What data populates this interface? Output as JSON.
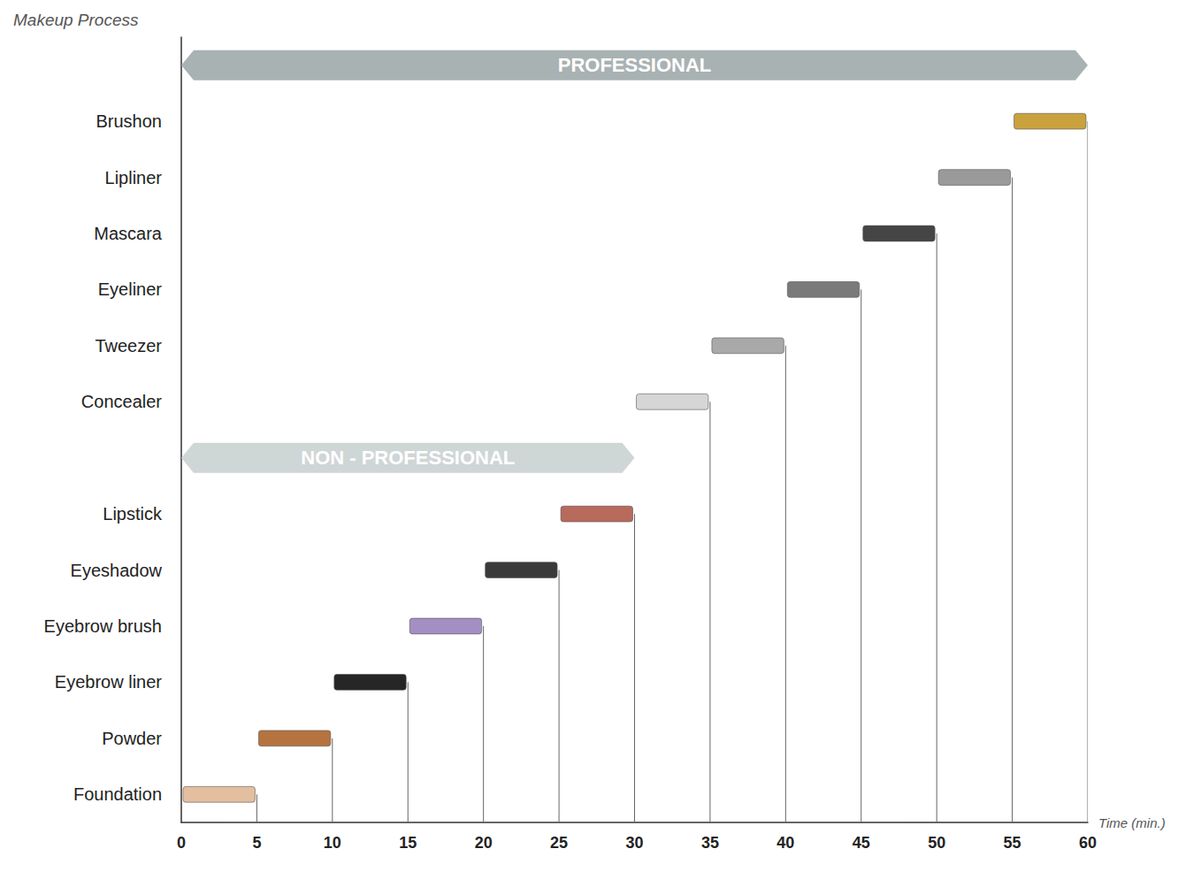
{
  "chart_data": {
    "type": "gantt",
    "orientation": "horizontal",
    "y_label": "Makeup Process",
    "x_label": "Time (min.)",
    "categories": [
      "Foundation",
      "Powder",
      "Eyebrow liner",
      "Eyebrow brush",
      "Eyeshadow",
      "Lipstick",
      null,
      "Concealer",
      "Tweezer",
      "Eyeliner",
      "Mascara",
      "Lipliner",
      "Brushon",
      null
    ],
    "start": [
      0,
      5,
      10,
      15,
      20,
      25,
      null,
      30,
      35,
      40,
      45,
      50,
      55,
      null
    ],
    "end": [
      5,
      10,
      15,
      20,
      25,
      30,
      null,
      35,
      40,
      45,
      50,
      55,
      60,
      null
    ],
    "colors": [
      "#e3bf9f",
      "#b5733f",
      "#262626",
      "#a48fc4",
      "#3a3a3a",
      "#b86a5c",
      null,
      "#d6d6d6",
      "#a9a9a9",
      "#7a7a7a",
      "#454545",
      "#9a9a9a",
      "#c9a23e",
      null
    ],
    "groups": [
      {
        "name": "NON - PROFESSIONAL",
        "start": 0,
        "end": 30
      },
      {
        "name": "PROFESSIONAL",
        "start": 0,
        "end": 60
      }
    ],
    "xlim": [
      0,
      60
    ],
    "xticks": [
      0,
      5,
      10,
      15,
      20,
      25,
      30,
      35,
      40,
      45,
      50,
      55,
      60
    ],
    "grid": false
  }
}
